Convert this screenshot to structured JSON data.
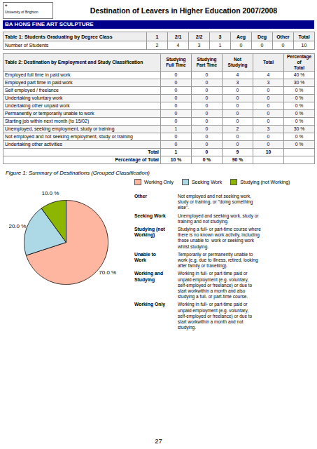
{
  "chart_data": [
    {
      "type": "header",
      "title": "Destination of Leavers in Higher Education 2007/2008",
      "subtitle": "BA HONS FINE ART SCULPTURE",
      "color": "#00008B",
      "annotations": [
        "*",
        "University of Brighton"
      ],
      "page_number": "27"
    },
    {
      "type": "table",
      "title": "Table 1: Students Graduating by Degree Class",
      "columns": [
        "1",
        "2/1",
        "2/2",
        "3",
        "Aeg",
        "Deg",
        "Other",
        "Total"
      ],
      "rows": [
        [
          "Number of Students",
          "2",
          "4",
          "3",
          "1",
          "0",
          "0",
          "0",
          "10"
        ]
      ]
    },
    {
      "type": "table",
      "title": "Table 2: Destination by Employment and Study Classification",
      "columns": [
        "Studying\nFull Time",
        "Studying\nPart Time",
        "Not\nStudying",
        "Total",
        "Percentage of\nTotal"
      ],
      "rows": [
        [
          "Employed full time in paid work",
          "0",
          "0",
          "4",
          "4",
          "40 %"
        ],
        [
          "Employed part time in paid work",
          "0",
          "0",
          "3",
          "3",
          "30 %"
        ],
        [
          "Self employed / freelance",
          "0",
          "0",
          "0",
          "0",
          "0 %"
        ],
        [
          "Undertaking voluntary work",
          "0",
          "0",
          "0",
          "0",
          "0 %"
        ],
        [
          "Undertaking other unpaid work",
          "0",
          "0",
          "0",
          "0",
          "0 %"
        ],
        [
          "Permanently or temporarily unable to work",
          "0",
          "0",
          "0",
          "0",
          "0 %"
        ],
        [
          "Starting job within next month (to 15/02)",
          "0",
          "0",
          "0",
          "0",
          "0 %"
        ],
        [
          "Unemployed, seeking employment, study or training",
          "1",
          "0",
          "2",
          "3",
          "30 %"
        ],
        [
          "Not employed and not seeking employment, study or training",
          "0",
          "0",
          "0",
          "0",
          "0 %"
        ],
        [
          "Undertaking other activities",
          "0",
          "0",
          "0",
          "0",
          "0 %"
        ]
      ],
      "summary_rows": [
        [
          "Total",
          "1",
          "0",
          "9",
          "10"
        ],
        [
          "Percentage of Total",
          "10 %",
          "0 %",
          "90 %"
        ]
      ]
    },
    {
      "type": "pie",
      "title": "Figure 1: Summary of Destinations (Grouped Classification)",
      "categories": [
        "Working Only",
        "Seeking Work",
        "Studying (not Working)"
      ],
      "values": [
        70.0,
        20.0,
        10.0
      ],
      "value_labels": [
        "70.0 %",
        "20.0 %",
        "10.0 %"
      ],
      "colors": [
        "#FFB6A0",
        "#ADD8E6",
        "#8DB600"
      ],
      "data_labels": true,
      "legend": "right",
      "definitions": [
        [
          "Other",
          "Not employed and not seeking work,\nstudy or training, or \"doing something\nelse\"."
        ],
        [
          "Seeking Work",
          "Unemployed and seeking work, study or\ntraining and not studying."
        ],
        [
          "Studying (not\nWorking)",
          "Studying a full- or part-time course where\nthere is no known work activity, including\nthose unable to  work or seeking work\nwhilst studying."
        ],
        [
          "Unable to\nWork",
          "Temporarily or permanently unable to\nwork (e.g. due to illness, retired, looking\nafter family or travelling)."
        ],
        [
          "Working and\nStudying",
          "Working in full- or part-time paid or\nunpaid employment (e.g. voluntary,\nself-employed or freelance) or due to\nstart workwithin a month and also\nstudying a full- or part-time course."
        ],
        [
          "Working Only",
          "Working in full- or part-time paid or\nunpaid employment (e.g. voluntary,\nself-employed or freelance) or due to\nstart workwithin a month and not\nstudying."
        ]
      ]
    }
  ]
}
